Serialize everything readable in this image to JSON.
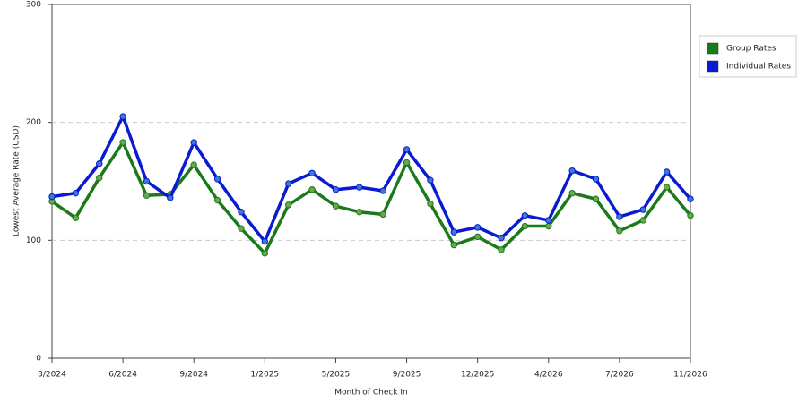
{
  "chart_data": {
    "type": "line",
    "x_label": "Month of Check In",
    "y_label": "Lowest Average Rate (USD)",
    "categories": [
      "3/2024",
      null,
      null,
      "6/2024",
      null,
      null,
      "9/2024",
      null,
      null,
      "1/2025",
      null,
      null,
      "5/2025",
      null,
      null,
      "9/2025",
      null,
      null,
      "12/2025",
      null,
      null,
      "4/2026",
      null,
      null,
      "7/2026",
      null,
      null,
      "11/2026"
    ],
    "series": [
      {
        "name": "Group Rates",
        "color": "#1a7a1a",
        "marker_color": "#6aa84f",
        "values": [
          133,
          119,
          153,
          183,
          138,
          139,
          164,
          134,
          110,
          89,
          130,
          143,
          129,
          124,
          122,
          166,
          131,
          96,
          103,
          92,
          112,
          112,
          140,
          135,
          108,
          117,
          145,
          121
        ]
      },
      {
        "name": "Individual Rates",
        "color": "#0a1ad0",
        "marker_color": "#3c78d8",
        "values": [
          137,
          140,
          165,
          205,
          150,
          136,
          183,
          152,
          124,
          99,
          148,
          157,
          143,
          145,
          142,
          177,
          151,
          107,
          111,
          102,
          121,
          117,
          159,
          152,
          120,
          126,
          158,
          135
        ]
      }
    ],
    "ylim": [
      0,
      300
    ],
    "yticks": [
      0,
      100,
      200,
      300
    ],
    "grid": true,
    "legend": "right"
  }
}
